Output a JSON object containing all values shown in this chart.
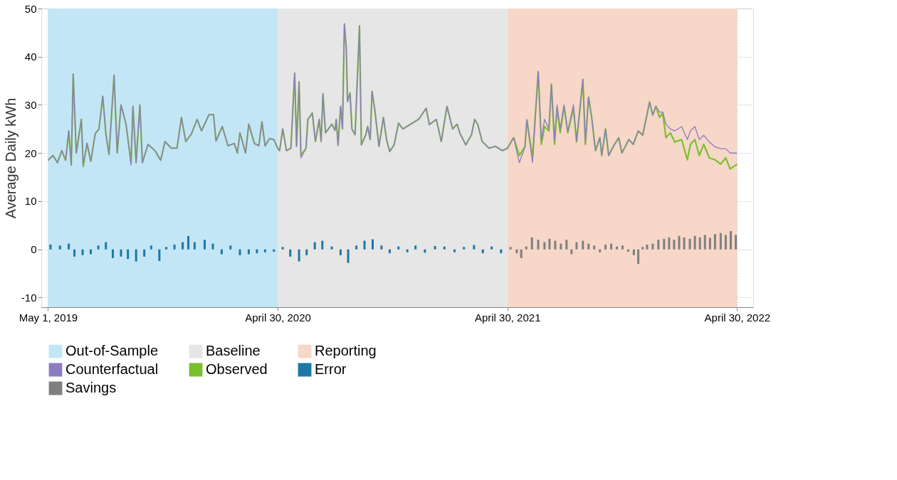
{
  "chart_data": {
    "type": "line",
    "ylabel": "Average Daily kWh",
    "xlim": [
      "2019-04-26",
      "2022-05-20"
    ],
    "ylim": [
      -12,
      50
    ],
    "yticks": [
      -10,
      0,
      10,
      20,
      30,
      40,
      50
    ],
    "xticks": [
      {
        "value": "2019-05-01",
        "label": "May 1, 2019"
      },
      {
        "value": "2020-04-30",
        "label": "April 30, 2020"
      },
      {
        "value": "2021-04-30",
        "label": "April 30, 2021"
      },
      {
        "value": "2022-04-30",
        "label": "April 30, 2022"
      }
    ],
    "grid": true,
    "legend": "bottom",
    "bands": [
      {
        "axis": "x",
        "from": "2019-05-01",
        "to": "2020-04-30",
        "label": "Out-of-Sample",
        "color": "#c3e6f6"
      },
      {
        "axis": "x",
        "from": "2020-04-30",
        "to": "2021-04-30",
        "label": "Baseline",
        "color": "#e6e6e6"
      },
      {
        "axis": "x",
        "from": "2021-04-30",
        "to": "2022-04-30",
        "label": "Reporting",
        "color": "#f6d7c8"
      }
    ],
    "series": [
      {
        "name": "Counterfactual",
        "color": "#8e7cc3",
        "x": [
          "2019-05-01",
          "2019-05-09",
          "2019-05-16",
          "2019-05-23",
          "2019-05-29",
          "2019-06-03",
          "2019-06-07",
          "2019-06-10",
          "2019-06-15",
          "2019-06-23",
          "2019-06-26",
          "2019-07-02",
          "2019-07-08",
          "2019-07-15",
          "2019-07-21",
          "2019-07-27",
          "2019-08-01",
          "2019-08-06",
          "2019-08-14",
          "2019-08-19",
          "2019-08-25",
          "2019-09-02",
          "2019-09-10",
          "2019-09-13",
          "2019-09-18",
          "2019-09-24",
          "2019-09-28",
          "2019-10-07",
          "2019-10-18",
          "2019-10-27",
          "2019-11-03",
          "2019-11-13",
          "2019-11-22",
          "2019-11-29",
          "2019-12-06",
          "2019-12-15",
          "2019-12-24",
          "2019-12-31",
          "2020-01-12",
          "2020-01-19",
          "2020-01-23",
          "2020-02-02",
          "2020-02-11",
          "2020-02-21",
          "2020-02-26",
          "2020-03-01",
          "2020-03-10",
          "2020-03-15",
          "2020-03-24",
          "2020-03-31",
          "2020-04-05",
          "2020-04-10",
          "2020-04-17",
          "2020-04-24",
          "2020-04-30",
          "2020-05-03",
          "2020-05-08",
          "2020-05-14",
          "2020-05-21",
          "2020-05-27",
          "2020-05-30",
          "2020-06-03",
          "2020-06-06",
          "2020-06-14",
          "2020-06-17",
          "2020-06-24",
          "2020-06-29",
          "2020-07-05",
          "2020-07-08",
          "2020-07-11",
          "2020-07-15",
          "2020-07-25",
          "2020-07-30",
          "2020-08-01",
          "2020-08-04",
          "2020-08-08",
          "2020-08-11",
          "2020-08-14",
          "2020-08-17",
          "2020-08-19",
          "2020-08-23",
          "2020-08-26",
          "2020-08-31",
          "2020-09-07",
          "2020-09-10",
          "2020-09-17",
          "2020-09-20",
          "2020-09-24",
          "2020-09-27",
          "2020-10-01",
          "2020-10-08",
          "2020-10-15",
          "2020-10-20",
          "2020-10-25",
          "2020-11-01",
          "2020-11-08",
          "2020-11-15",
          "2020-11-26",
          "2020-12-10",
          "2020-12-22",
          "2020-12-27",
          "2021-01-07",
          "2021-01-15",
          "2021-01-24",
          "2021-02-02",
          "2021-02-09",
          "2021-02-14",
          "2021-02-23",
          "2021-03-04",
          "2021-03-09",
          "2021-03-14",
          "2021-03-21",
          "2021-04-01",
          "2021-04-11",
          "2021-04-22",
          "2021-04-30",
          "2021-05-10",
          "2021-05-19",
          "2021-05-28",
          "2021-05-31",
          "2021-06-09",
          "2021-06-18",
          "2021-06-23",
          "2021-06-28",
          "2021-07-05",
          "2021-07-09",
          "2021-07-14",
          "2021-07-18",
          "2021-07-23",
          "2021-07-29",
          "2021-08-04",
          "2021-08-13",
          "2021-08-18",
          "2021-08-28",
          "2021-09-01",
          "2021-09-06",
          "2021-09-11",
          "2021-09-17",
          "2021-09-24",
          "2021-09-27",
          "2021-10-03",
          "2021-10-08",
          "2021-10-15",
          "2021-10-24",
          "2021-10-29",
          "2021-11-09",
          "2021-11-16",
          "2021-11-24",
          "2021-12-01",
          "2021-12-07",
          "2021-12-12",
          "2021-12-17",
          "2021-12-22",
          "2021-12-28",
          "2022-01-02",
          "2022-01-07",
          "2022-01-14",
          "2022-01-21",
          "2022-02-01",
          "2022-02-10",
          "2022-02-15",
          "2022-02-22",
          "2022-03-01",
          "2022-03-08",
          "2022-03-17",
          "2022-03-26",
          "2022-04-04",
          "2022-04-12",
          "2022-04-19",
          "2022-04-30"
        ],
        "values": [
          18.5,
          19.5,
          18.0,
          20.5,
          18.5,
          24.6,
          17.5,
          36.4,
          20,
          27,
          17.5,
          22,
          18.3,
          24,
          25,
          31.8,
          24,
          19.7,
          36.2,
          20,
          30,
          26,
          17.5,
          29.7,
          18,
          30,
          18,
          21.8,
          20.5,
          18.5,
          22.4,
          21,
          21,
          27.4,
          22.4,
          24,
          27,
          24.6,
          28,
          28,
          22.5,
          25.5,
          21.5,
          22,
          20,
          24.2,
          20,
          26,
          22,
          21.5,
          26.5,
          21.5,
          23,
          22.8,
          21,
          20.5,
          25,
          20.5,
          21,
          36.6,
          21.4,
          34.8,
          19,
          21,
          27,
          28.3,
          22.4,
          27,
          22.4,
          32.3,
          24.2,
          26,
          24.7,
          27,
          21.6,
          29.7,
          25,
          46.8,
          41.8,
          30.7,
          32.5,
          25,
          23.8,
          46.4,
          21.7,
          23.8,
          25.5,
          22.8,
          32.8,
          29.3,
          21.4,
          27.4,
          22.8,
          20.3,
          21.7,
          26.2,
          25,
          25.9,
          27,
          29.3,
          25.9,
          27,
          22.4,
          29.7,
          25,
          26,
          24,
          21.7,
          23.8,
          27,
          25.9,
          22.4,
          21,
          21.4,
          20.5,
          21,
          23.2,
          18,
          21.3,
          26.9,
          18,
          36.9,
          22.5,
          27,
          25,
          34.3,
          22.5,
          30,
          25,
          30,
          24.5,
          30,
          22.5,
          35.3,
          22,
          31.6,
          27.4,
          20.5,
          23.2,
          19.5,
          25,
          19.5,
          21.3,
          23.2,
          20,
          22.8,
          21.8,
          24.6,
          23.7,
          27.4,
          30.6,
          27.9,
          29.7,
          28.5,
          28.5,
          26,
          25,
          24.6,
          25.5,
          22.8,
          24.6,
          25.5,
          22.8,
          23.7,
          22.3,
          21.3,
          20.9,
          20.9,
          20,
          20
        ]
      },
      {
        "name": "Observed",
        "color": "#7cbf2e",
        "x": [
          "2019-05-01",
          "2019-05-09",
          "2019-05-16",
          "2019-05-23",
          "2019-05-29",
          "2019-06-03",
          "2019-06-07",
          "2019-06-10",
          "2019-06-15",
          "2019-06-23",
          "2019-06-26",
          "2019-07-02",
          "2019-07-08",
          "2019-07-15",
          "2019-07-21",
          "2019-07-27",
          "2019-08-01",
          "2019-08-06",
          "2019-08-14",
          "2019-08-19",
          "2019-08-25",
          "2019-09-02",
          "2019-09-10",
          "2019-09-13",
          "2019-09-18",
          "2019-09-24",
          "2019-09-28",
          "2019-10-07",
          "2019-10-18",
          "2019-10-27",
          "2019-11-03",
          "2019-11-13",
          "2019-11-22",
          "2019-11-29",
          "2019-12-06",
          "2019-12-15",
          "2019-12-24",
          "2019-12-31",
          "2020-01-12",
          "2020-01-19",
          "2020-01-23",
          "2020-02-02",
          "2020-02-11",
          "2020-02-21",
          "2020-02-26",
          "2020-03-01",
          "2020-03-10",
          "2020-03-15",
          "2020-03-24",
          "2020-03-31",
          "2020-04-05",
          "2020-04-10",
          "2020-04-17",
          "2020-04-24",
          "2020-04-30",
          "2020-05-03",
          "2020-05-08",
          "2020-05-14",
          "2020-05-21",
          "2020-05-27",
          "2020-05-30",
          "2020-06-03",
          "2020-06-06",
          "2020-06-14",
          "2020-06-17",
          "2020-06-24",
          "2020-06-29",
          "2020-07-05",
          "2020-07-08",
          "2020-07-11",
          "2020-07-15",
          "2020-07-25",
          "2020-07-30",
          "2020-08-01",
          "2020-08-04",
          "2020-08-08",
          "2020-08-11",
          "2020-08-14",
          "2020-08-17",
          "2020-08-19",
          "2020-08-23",
          "2020-08-26",
          "2020-08-31",
          "2020-09-07",
          "2020-09-10",
          "2020-09-17",
          "2020-09-20",
          "2020-09-24",
          "2020-09-27",
          "2020-10-01",
          "2020-10-08",
          "2020-10-15",
          "2020-10-20",
          "2020-10-25",
          "2020-11-01",
          "2020-11-08",
          "2020-11-15",
          "2020-11-26",
          "2020-12-10",
          "2020-12-22",
          "2020-12-27",
          "2021-01-07",
          "2021-01-15",
          "2021-01-24",
          "2021-02-02",
          "2021-02-09",
          "2021-02-14",
          "2021-02-23",
          "2021-03-04",
          "2021-03-09",
          "2021-03-14",
          "2021-03-21",
          "2021-04-01",
          "2021-04-11",
          "2021-04-22",
          "2021-04-30",
          "2021-05-10",
          "2021-05-19",
          "2021-05-28",
          "2021-05-31",
          "2021-06-09",
          "2021-06-18",
          "2021-06-23",
          "2021-06-28",
          "2021-07-05",
          "2021-07-09",
          "2021-07-14",
          "2021-07-18",
          "2021-07-23",
          "2021-07-29",
          "2021-08-04",
          "2021-08-13",
          "2021-08-18",
          "2021-08-28",
          "2021-09-01",
          "2021-09-06",
          "2021-09-11",
          "2021-09-17",
          "2021-09-24",
          "2021-09-27",
          "2021-10-03",
          "2021-10-08",
          "2021-10-15",
          "2021-10-24",
          "2021-10-29",
          "2021-11-09",
          "2021-11-16",
          "2021-11-24",
          "2021-12-01",
          "2021-12-07",
          "2021-12-12",
          "2021-12-17",
          "2021-12-22",
          "2021-12-28",
          "2022-01-02",
          "2022-01-07",
          "2022-01-14",
          "2022-01-21",
          "2022-02-01",
          "2022-02-10",
          "2022-02-15",
          "2022-02-22",
          "2022-03-01",
          "2022-03-08",
          "2022-03-17",
          "2022-03-26",
          "2022-04-04",
          "2022-04-12",
          "2022-04-19",
          "2022-04-30"
        ],
        "values": [
          18.5,
          19.5,
          18.0,
          20.5,
          18.5,
          24.6,
          17.5,
          36.4,
          20,
          27,
          17.2,
          22,
          18.3,
          24,
          25,
          31.8,
          24,
          19.7,
          36.2,
          20,
          30,
          26,
          18,
          29.7,
          18,
          30,
          18,
          21.8,
          20.5,
          18.5,
          22.4,
          21,
          21,
          27.4,
          22.4,
          24,
          27,
          24.6,
          28,
          28,
          22.5,
          25.5,
          21.5,
          22,
          20,
          24.2,
          20,
          26,
          22,
          21.5,
          26.5,
          21.5,
          23,
          22.8,
          21,
          20.5,
          25,
          20.5,
          21,
          36.6,
          21.4,
          34.8,
          19.5,
          21,
          27,
          28.3,
          22.4,
          27,
          22.4,
          32.3,
          24.2,
          26,
          24.7,
          27,
          21.6,
          29.7,
          25,
          46.8,
          41.8,
          30.7,
          32.5,
          25,
          23.8,
          46.4,
          21.7,
          23.8,
          25.5,
          22.8,
          32.8,
          29.3,
          21.4,
          27.4,
          22.8,
          20.3,
          21.7,
          26.2,
          25,
          25.9,
          27,
          29.3,
          25.9,
          27,
          22.4,
          29.7,
          25,
          26,
          24,
          21.7,
          23.8,
          27,
          25.9,
          22.4,
          21,
          21.4,
          20.5,
          21,
          23.2,
          19.5,
          21.3,
          26.9,
          19,
          36.9,
          21.8,
          25.5,
          24.6,
          34.3,
          21.8,
          29.3,
          24.2,
          29.7,
          24.2,
          29.3,
          22.3,
          35.3,
          21.8,
          31.6,
          27.4,
          20.5,
          23.2,
          19.5,
          25,
          19.5,
          21.3,
          23.2,
          20,
          22.8,
          21.8,
          24.6,
          23.7,
          27.4,
          30.6,
          27.9,
          29.7,
          27.4,
          28.3,
          23.2,
          24.2,
          22.3,
          22.8,
          18.6,
          21.8,
          22.8,
          19.5,
          21.8,
          19,
          18.6,
          17.7,
          19,
          16.7,
          17.7
        ]
      },
      {
        "name": "Error",
        "type": "bar",
        "color": "#1f77a4",
        "x": [
          "2019-05-05",
          "2019-05-20",
          "2019-06-03",
          "2019-06-12",
          "2019-06-25",
          "2019-07-08",
          "2019-07-20",
          "2019-08-01",
          "2019-08-12",
          "2019-08-25",
          "2019-09-05",
          "2019-09-18",
          "2019-10-01",
          "2019-10-12",
          "2019-10-25",
          "2019-11-05",
          "2019-11-18",
          "2019-12-01",
          "2019-12-10",
          "2019-12-20",
          "2020-01-05",
          "2020-01-18",
          "2020-02-01",
          "2020-02-15",
          "2020-03-01",
          "2020-03-15",
          "2020-03-28",
          "2020-04-10",
          "2020-04-24",
          "2020-05-08",
          "2020-05-20",
          "2020-06-03",
          "2020-06-15",
          "2020-06-28",
          "2020-07-10",
          "2020-07-25",
          "2020-08-08",
          "2020-08-20",
          "2020-09-02",
          "2020-09-15",
          "2020-09-28",
          "2020-10-12",
          "2020-10-25",
          "2020-11-08",
          "2020-11-22",
          "2020-12-05",
          "2020-12-20",
          "2021-01-05",
          "2021-01-20",
          "2021-02-05",
          "2021-02-20",
          "2021-03-08",
          "2021-03-22",
          "2021-04-05",
          "2021-04-20"
        ],
        "values": [
          1.0,
          0.8,
          1.2,
          -1.5,
          -1.2,
          -1.0,
          0.8,
          1.5,
          -1.8,
          -1.5,
          -2.0,
          -2.5,
          -1.5,
          0.8,
          -2.4,
          0.5,
          1.0,
          1.5,
          2.8,
          1.5,
          2.0,
          1.2,
          -1.0,
          0.8,
          -1.2,
          -1.0,
          -0.8,
          -0.6,
          -0.5,
          0.5,
          -1.5,
          -2.5,
          -1.2,
          1.5,
          1.8,
          0.6,
          -1.2,
          -2.8,
          0.8,
          1.8,
          2.1,
          0.8,
          -0.8,
          0.6,
          -0.6,
          0.8,
          -0.7,
          0.7,
          0.6,
          -0.6,
          0.5,
          0.9,
          -0.8,
          0.6,
          -0.8
        ]
      },
      {
        "name": "Savings",
        "type": "bar",
        "color": "#7f7f7f",
        "x": [
          "2021-05-05",
          "2021-05-15",
          "2021-05-22",
          "2021-05-30",
          "2021-06-08",
          "2021-06-18",
          "2021-06-28",
          "2021-07-06",
          "2021-07-15",
          "2021-07-24",
          "2021-08-02",
          "2021-08-10",
          "2021-08-18",
          "2021-08-28",
          "2021-09-06",
          "2021-09-15",
          "2021-09-24",
          "2021-10-03",
          "2021-10-12",
          "2021-10-21",
          "2021-10-30",
          "2021-11-08",
          "2021-11-17",
          "2021-11-24",
          "2021-12-01",
          "2021-12-08",
          "2021-12-17",
          "2021-12-26",
          "2022-01-04",
          "2022-01-12",
          "2022-01-20",
          "2022-01-28",
          "2022-02-05",
          "2022-02-14",
          "2022-02-22",
          "2022-03-02",
          "2022-03-10",
          "2022-03-18",
          "2022-03-26",
          "2022-04-04",
          "2022-04-12",
          "2022-04-20",
          "2022-04-28"
        ],
        "values": [
          0.5,
          -0.8,
          -1.8,
          0.6,
          2.5,
          2.0,
          1.5,
          2.2,
          1.8,
          1.2,
          2.0,
          -1.0,
          1.5,
          1.8,
          1.2,
          0.8,
          -0.6,
          1.0,
          1.2,
          0.6,
          0.8,
          -0.5,
          -1.2,
          -3.0,
          0.5,
          1.0,
          1.2,
          2.0,
          2.2,
          2.5,
          2.0,
          2.8,
          2.5,
          2.2,
          2.8,
          2.5,
          3.0,
          2.4,
          3.2,
          3.4,
          3.0,
          3.8,
          3.0
        ]
      }
    ]
  }
}
